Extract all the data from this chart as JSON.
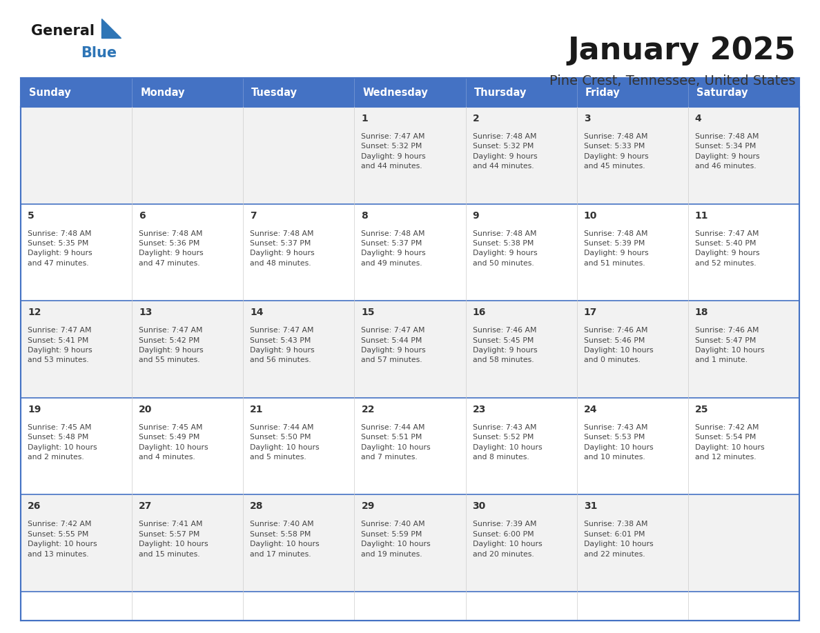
{
  "title": "January 2025",
  "subtitle": "Pine Crest, Tennessee, United States",
  "days_of_week": [
    "Sunday",
    "Monday",
    "Tuesday",
    "Wednesday",
    "Thursday",
    "Friday",
    "Saturday"
  ],
  "header_bg": "#4472C4",
  "header_text": "#FFFFFF",
  "cell_border_color": "#4472C4",
  "cell_bg_light": "#F2F2F2",
  "cell_bg_white": "#FFFFFF",
  "day_num_color": "#333333",
  "data_text_color": "#444444",
  "title_color": "#1a1a1a",
  "subtitle_color": "#333333",
  "logo_general_color": "#1a1a1a",
  "logo_blue_color": "#2E75B6",
  "calendar": [
    [
      {
        "day": null,
        "info": null
      },
      {
        "day": null,
        "info": null
      },
      {
        "day": null,
        "info": null
      },
      {
        "day": 1,
        "info": "Sunrise: 7:47 AM\nSunset: 5:32 PM\nDaylight: 9 hours\nand 44 minutes."
      },
      {
        "day": 2,
        "info": "Sunrise: 7:48 AM\nSunset: 5:32 PM\nDaylight: 9 hours\nand 44 minutes."
      },
      {
        "day": 3,
        "info": "Sunrise: 7:48 AM\nSunset: 5:33 PM\nDaylight: 9 hours\nand 45 minutes."
      },
      {
        "day": 4,
        "info": "Sunrise: 7:48 AM\nSunset: 5:34 PM\nDaylight: 9 hours\nand 46 minutes."
      }
    ],
    [
      {
        "day": 5,
        "info": "Sunrise: 7:48 AM\nSunset: 5:35 PM\nDaylight: 9 hours\nand 47 minutes."
      },
      {
        "day": 6,
        "info": "Sunrise: 7:48 AM\nSunset: 5:36 PM\nDaylight: 9 hours\nand 47 minutes."
      },
      {
        "day": 7,
        "info": "Sunrise: 7:48 AM\nSunset: 5:37 PM\nDaylight: 9 hours\nand 48 minutes."
      },
      {
        "day": 8,
        "info": "Sunrise: 7:48 AM\nSunset: 5:37 PM\nDaylight: 9 hours\nand 49 minutes."
      },
      {
        "day": 9,
        "info": "Sunrise: 7:48 AM\nSunset: 5:38 PM\nDaylight: 9 hours\nand 50 minutes."
      },
      {
        "day": 10,
        "info": "Sunrise: 7:48 AM\nSunset: 5:39 PM\nDaylight: 9 hours\nand 51 minutes."
      },
      {
        "day": 11,
        "info": "Sunrise: 7:47 AM\nSunset: 5:40 PM\nDaylight: 9 hours\nand 52 minutes."
      }
    ],
    [
      {
        "day": 12,
        "info": "Sunrise: 7:47 AM\nSunset: 5:41 PM\nDaylight: 9 hours\nand 53 minutes."
      },
      {
        "day": 13,
        "info": "Sunrise: 7:47 AM\nSunset: 5:42 PM\nDaylight: 9 hours\nand 55 minutes."
      },
      {
        "day": 14,
        "info": "Sunrise: 7:47 AM\nSunset: 5:43 PM\nDaylight: 9 hours\nand 56 minutes."
      },
      {
        "day": 15,
        "info": "Sunrise: 7:47 AM\nSunset: 5:44 PM\nDaylight: 9 hours\nand 57 minutes."
      },
      {
        "day": 16,
        "info": "Sunrise: 7:46 AM\nSunset: 5:45 PM\nDaylight: 9 hours\nand 58 minutes."
      },
      {
        "day": 17,
        "info": "Sunrise: 7:46 AM\nSunset: 5:46 PM\nDaylight: 10 hours\nand 0 minutes."
      },
      {
        "day": 18,
        "info": "Sunrise: 7:46 AM\nSunset: 5:47 PM\nDaylight: 10 hours\nand 1 minute."
      }
    ],
    [
      {
        "day": 19,
        "info": "Sunrise: 7:45 AM\nSunset: 5:48 PM\nDaylight: 10 hours\nand 2 minutes."
      },
      {
        "day": 20,
        "info": "Sunrise: 7:45 AM\nSunset: 5:49 PM\nDaylight: 10 hours\nand 4 minutes."
      },
      {
        "day": 21,
        "info": "Sunrise: 7:44 AM\nSunset: 5:50 PM\nDaylight: 10 hours\nand 5 minutes."
      },
      {
        "day": 22,
        "info": "Sunrise: 7:44 AM\nSunset: 5:51 PM\nDaylight: 10 hours\nand 7 minutes."
      },
      {
        "day": 23,
        "info": "Sunrise: 7:43 AM\nSunset: 5:52 PM\nDaylight: 10 hours\nand 8 minutes."
      },
      {
        "day": 24,
        "info": "Sunrise: 7:43 AM\nSunset: 5:53 PM\nDaylight: 10 hours\nand 10 minutes."
      },
      {
        "day": 25,
        "info": "Sunrise: 7:42 AM\nSunset: 5:54 PM\nDaylight: 10 hours\nand 12 minutes."
      }
    ],
    [
      {
        "day": 26,
        "info": "Sunrise: 7:42 AM\nSunset: 5:55 PM\nDaylight: 10 hours\nand 13 minutes."
      },
      {
        "day": 27,
        "info": "Sunrise: 7:41 AM\nSunset: 5:57 PM\nDaylight: 10 hours\nand 15 minutes."
      },
      {
        "day": 28,
        "info": "Sunrise: 7:40 AM\nSunset: 5:58 PM\nDaylight: 10 hours\nand 17 minutes."
      },
      {
        "day": 29,
        "info": "Sunrise: 7:40 AM\nSunset: 5:59 PM\nDaylight: 10 hours\nand 19 minutes."
      },
      {
        "day": 30,
        "info": "Sunrise: 7:39 AM\nSunset: 6:00 PM\nDaylight: 10 hours\nand 20 minutes."
      },
      {
        "day": 31,
        "info": "Sunrise: 7:38 AM\nSunset: 6:01 PM\nDaylight: 10 hours\nand 22 minutes."
      },
      {
        "day": null,
        "info": null
      }
    ]
  ]
}
